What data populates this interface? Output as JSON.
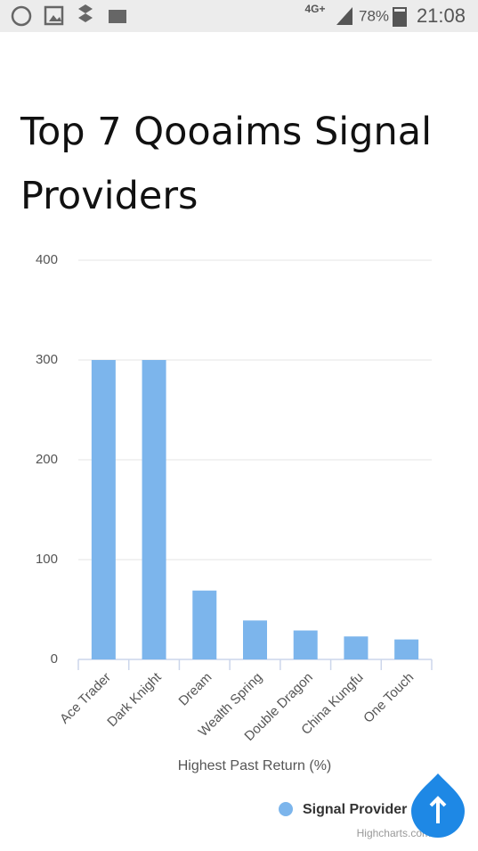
{
  "status_bar": {
    "network": "4G+",
    "battery": "78%",
    "time": "21:08"
  },
  "chart_data": {
    "type": "bar",
    "title": "Top 7 Qooaims Signal Providers",
    "x_label": "Highest Past Return (%)",
    "categories": [
      "Ace Trader",
      "Dark Knight",
      "Dream",
      "Wealth Spring",
      "Double Dragon",
      "China Kungfu",
      "One Touch"
    ],
    "series": [
      {
        "name": "Signal Provider",
        "color": "#7cb5ec",
        "values": [
          300,
          300,
          69,
          39,
          29,
          23,
          20
        ]
      }
    ],
    "ylim": [
      0,
      400
    ],
    "yticks": [
      0,
      100,
      200,
      300,
      400
    ],
    "grid": true,
    "credit": "Highcharts.com"
  }
}
